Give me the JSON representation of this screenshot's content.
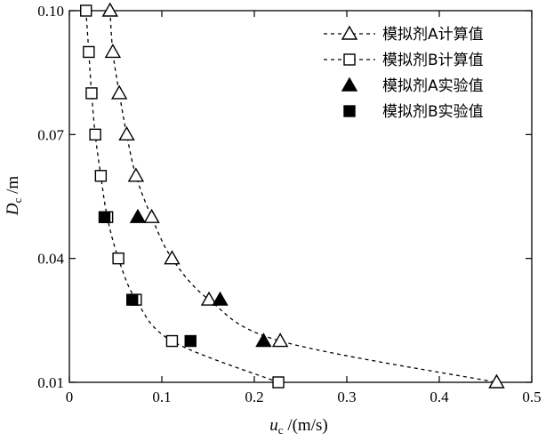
{
  "chart_data": {
    "type": "scatter",
    "xlabel": {
      "var": "u",
      "sub": "c",
      "unit": " /(m/s)"
    },
    "ylabel": {
      "var": "D",
      "sub": "c",
      "unit": " /m"
    },
    "xlim": [
      0,
      0.5
    ],
    "ylim": [
      0.01,
      0.1
    ],
    "xticks": [
      0,
      0.1,
      0.2,
      0.3,
      0.4,
      0.5
    ],
    "xtick_labels": [
      "0",
      "0.1",
      "0.2",
      "0.3",
      "0.4",
      "0.5"
    ],
    "yticks": [
      0.01,
      0.04,
      0.07,
      0.1
    ],
    "ytick_labels": [
      "0.01",
      "0.04",
      "0.07",
      "0.10"
    ],
    "grid": false,
    "legend_position": "top-right",
    "series": [
      {
        "name": "模拟剂A计算值",
        "marker": "triangle-open",
        "line": "dashed",
        "x": [
          0.044,
          0.047,
          0.054,
          0.062,
          0.072,
          0.089,
          0.111,
          0.151,
          0.228,
          0.462
        ],
        "y": [
          0.1,
          0.09,
          0.08,
          0.07,
          0.06,
          0.05,
          0.04,
          0.03,
          0.02,
          0.01
        ]
      },
      {
        "name": "模拟剂B计算值",
        "marker": "square-open",
        "line": "dashed",
        "x": [
          0.018,
          0.021,
          0.024,
          0.028,
          0.034,
          0.041,
          0.053,
          0.072,
          0.111,
          0.226
        ],
        "y": [
          0.1,
          0.09,
          0.08,
          0.07,
          0.06,
          0.05,
          0.04,
          0.03,
          0.02,
          0.01
        ]
      },
      {
        "name": "模拟剂A实验值",
        "marker": "triangle-filled",
        "line": "none",
        "x": [
          0.074,
          0.163,
          0.21
        ],
        "y": [
          0.05,
          0.03,
          0.02
        ]
      },
      {
        "name": "模拟剂B实验值",
        "marker": "square-filled",
        "line": "none",
        "x": [
          0.038,
          0.068,
          0.131
        ],
        "y": [
          0.05,
          0.03,
          0.02
        ]
      }
    ]
  }
}
